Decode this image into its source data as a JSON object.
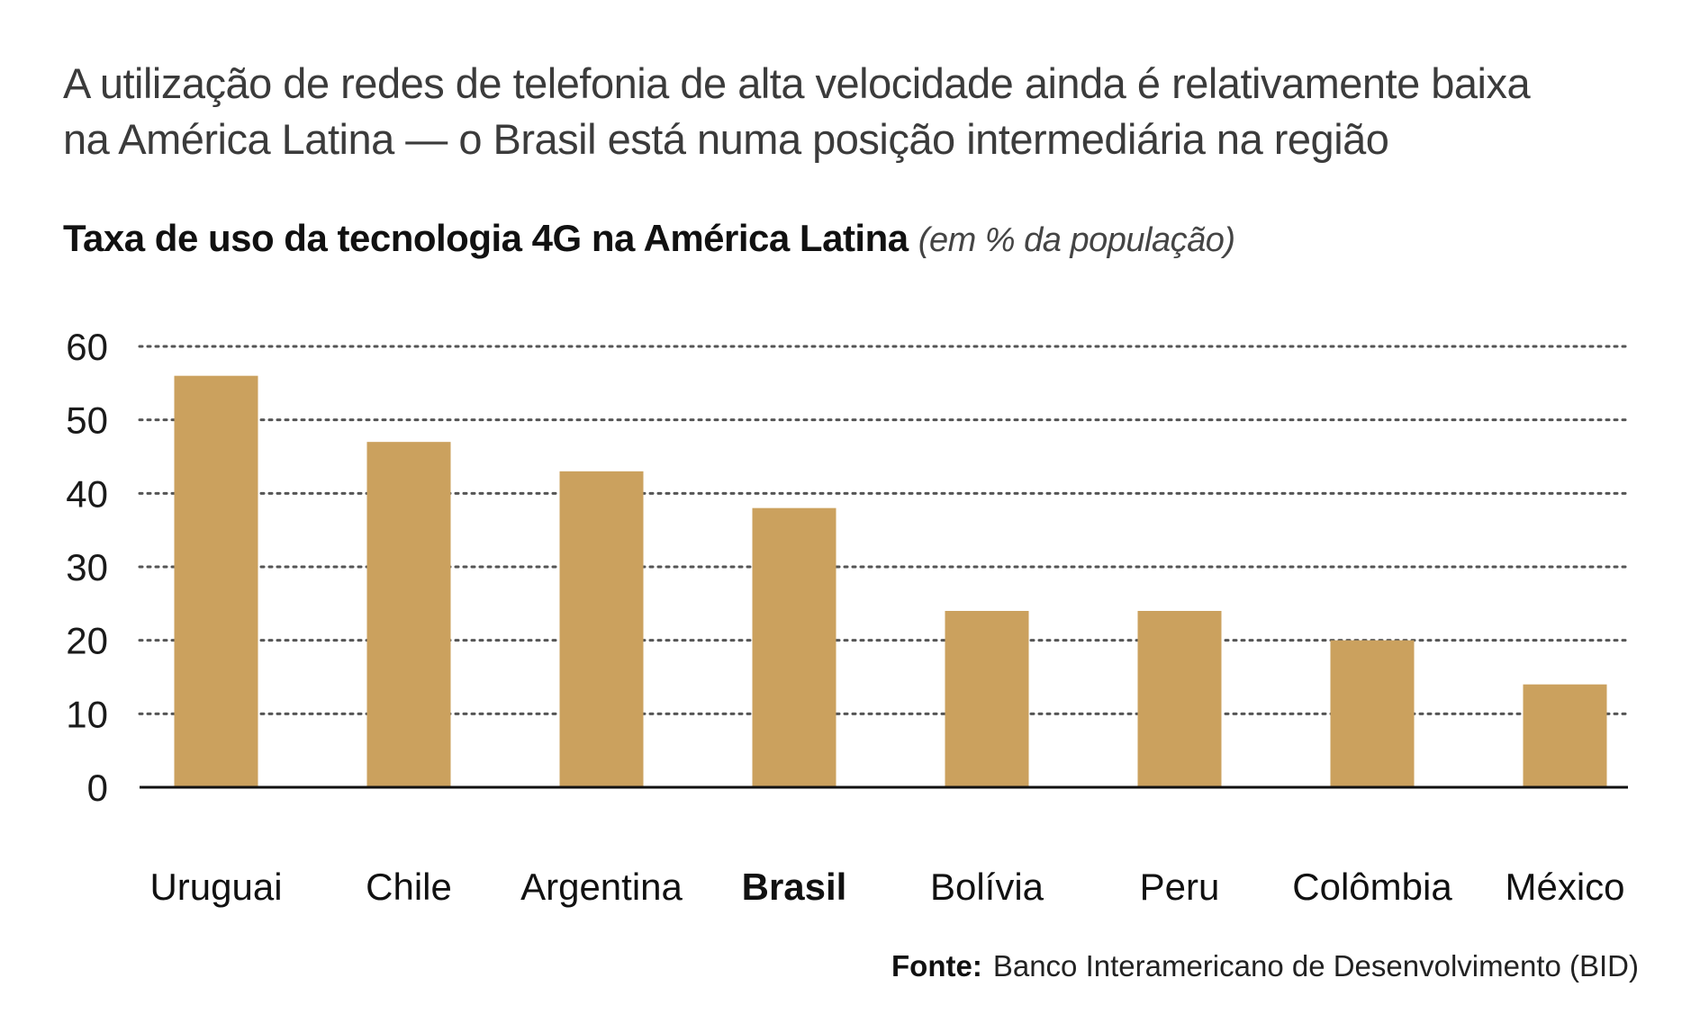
{
  "headline": {
    "line1": "A utilização de redes de telefonia de alta velocidade ainda é relativamente baixa",
    "line2": "na América Latina — o Brasil está numa posição intermediária na região"
  },
  "source": {
    "label": "Fonte:",
    "text": "Banco Interamericano de Desenvolvimento (BID)"
  },
  "chart_data": {
    "type": "bar",
    "title": "Taxa de uso da tecnologia 4G na América Latina",
    "subtitle": "(em % da população)",
    "xlabel": "",
    "ylabel": "",
    "categories": [
      "Uruguai",
      "Chile",
      "Argentina",
      "Brasil",
      "Bolívia",
      "Peru",
      "Colômbia",
      "México"
    ],
    "values": [
      56,
      47,
      43,
      38,
      24,
      24,
      20,
      14
    ],
    "highlight": "Brasil",
    "ylim": [
      0,
      60
    ],
    "yticks": [
      0,
      10,
      20,
      30,
      40,
      50,
      60
    ],
    "grid": true,
    "bar_color": "#CBA15E"
  }
}
